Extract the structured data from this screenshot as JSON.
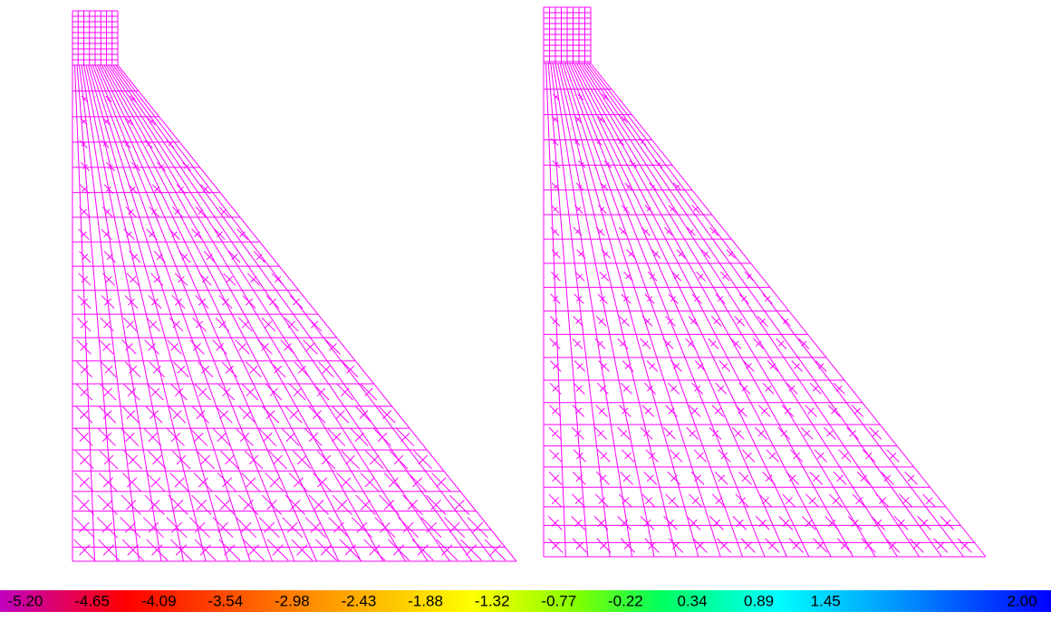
{
  "legend": {
    "labels": [
      "-5.20",
      "-4.65",
      "-4.09",
      "-3.54",
      "-2.98",
      "-2.43",
      "-1.88",
      "-1.32",
      "-0.77",
      "-0.22",
      "0.34",
      "0.89",
      "1.45",
      "2.00"
    ]
  }
}
